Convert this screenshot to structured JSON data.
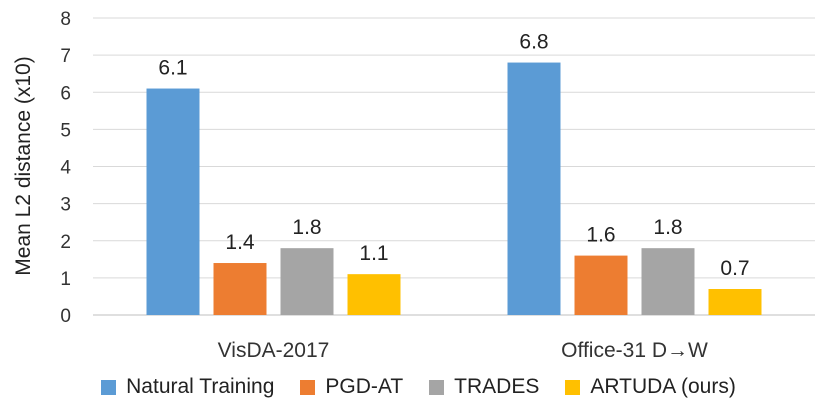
{
  "chart_data": {
    "type": "bar",
    "title": "",
    "xlabel": "",
    "ylabel": "Mean L2 distance (x10)",
    "ylim": [
      0,
      8
    ],
    "yticks": [
      0,
      1,
      2,
      3,
      4,
      5,
      6,
      7,
      8
    ],
    "grid": true,
    "legend_position": "bottom",
    "categories": [
      "VisDA-2017",
      "Office-31 D→W"
    ],
    "series": [
      {
        "name": "Natural Training",
        "color": "#5b9bd5",
        "values": [
          6.1,
          6.8
        ],
        "labels": [
          "6.1",
          "6.8"
        ]
      },
      {
        "name": "PGD-AT",
        "color": "#ed7d31",
        "values": [
          1.4,
          1.6
        ],
        "labels": [
          "1.4",
          "1.6"
        ]
      },
      {
        "name": "TRADES",
        "color": "#a5a5a5",
        "values": [
          1.8,
          1.8
        ],
        "labels": [
          "1.8",
          "1.8"
        ]
      },
      {
        "name": "ARTUDA (ours)",
        "color": "#ffc000",
        "values": [
          1.1,
          0.7
        ],
        "labels": [
          "1.1",
          "0.7"
        ]
      }
    ]
  }
}
